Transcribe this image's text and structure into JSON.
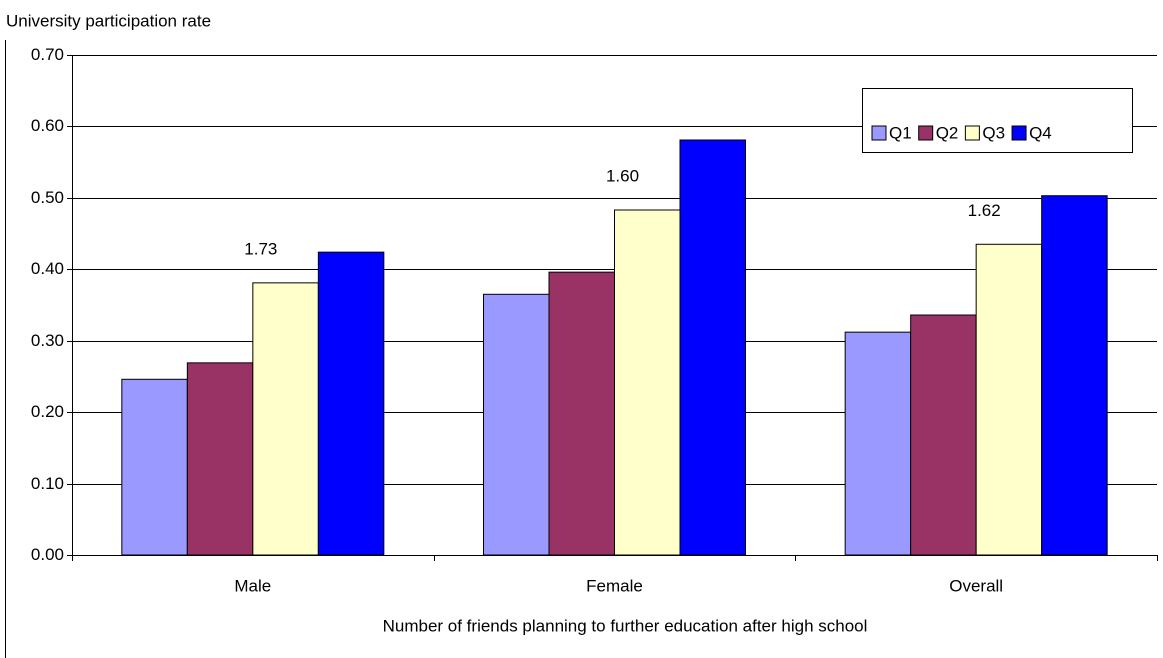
{
  "chart_data": {
    "type": "bar",
    "ylabel": "University participation rate",
    "xlabel": "Number of friends planning to further education after high school",
    "categories": [
      "Male",
      "Female",
      "Overall"
    ],
    "series": [
      {
        "name": "Q1",
        "color": "#9999ff",
        "values": [
          0.246,
          0.365,
          0.312
        ]
      },
      {
        "name": "Q2",
        "color": "#993366",
        "values": [
          0.269,
          0.396,
          0.336
        ]
      },
      {
        "name": "Q3",
        "color": "#ffffcc",
        "values": [
          0.381,
          0.483,
          0.435
        ]
      },
      {
        "name": "Q4",
        "color": "#0000ff",
        "values": [
          0.424,
          0.581,
          0.503
        ]
      }
    ],
    "annotations": [
      "1.73",
      "1.60",
      "1.62"
    ],
    "ylim": [
      0,
      0.7
    ],
    "yticks": [
      {
        "value": 0,
        "label": "0.00"
      },
      {
        "value": 0.1,
        "label": "0.10"
      },
      {
        "value": 0.2,
        "label": "0.20"
      },
      {
        "value": 0.3,
        "label": "0.30"
      },
      {
        "value": 0.4,
        "label": "0.40"
      },
      {
        "value": 0.5,
        "label": "0.50"
      },
      {
        "value": 0.6,
        "label": "0.60"
      },
      {
        "value": 0.7,
        "label": "0.70"
      }
    ],
    "grid": true,
    "legend": "top-right"
  }
}
